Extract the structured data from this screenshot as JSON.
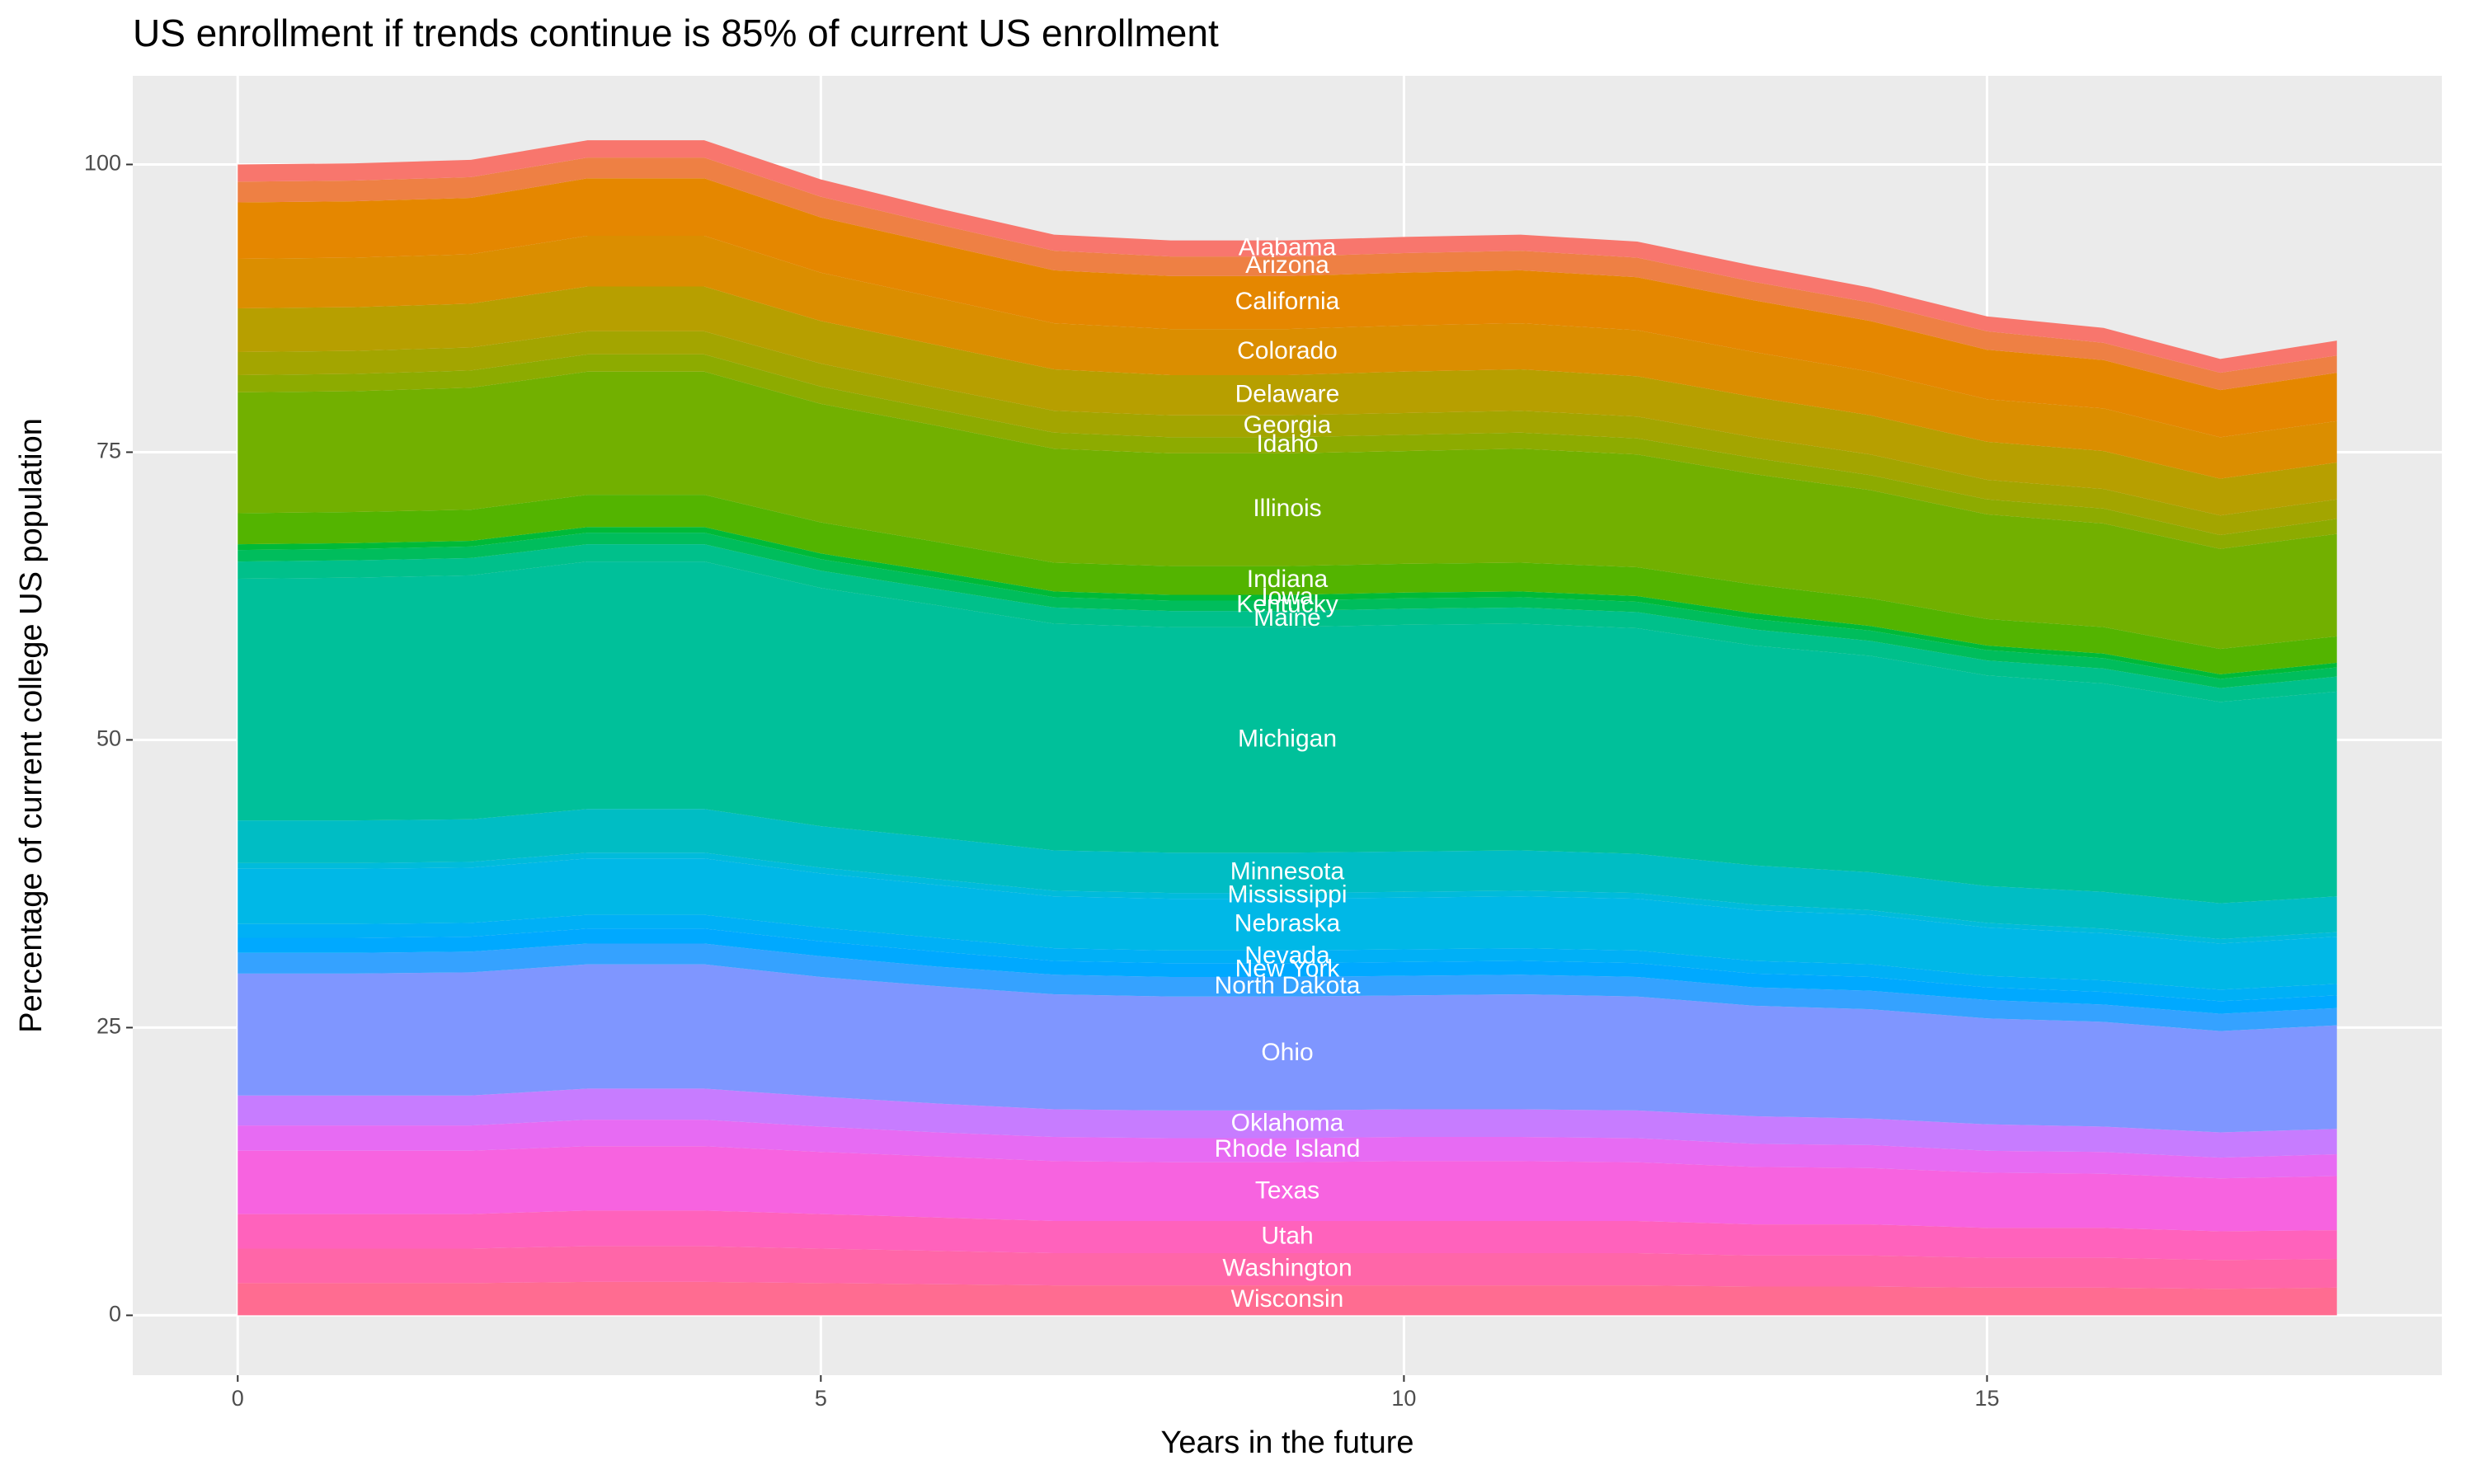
{
  "chart_data": {
    "type": "area",
    "title": "US enrollment if trends continue is 85% of current US enrollment",
    "x_label": "Years in the future",
    "y_label": "Percentage of current college US population",
    "x": [
      0,
      1,
      2,
      3,
      4,
      5,
      6,
      7,
      8,
      9,
      10,
      11,
      12,
      13,
      14,
      15,
      16,
      17,
      18
    ],
    "xlim": [
      -0.9,
      18.9
    ],
    "ylim": [
      -5.2,
      107.7
    ],
    "xticks": [
      0,
      5,
      10,
      15
    ],
    "yticks": [
      0,
      25,
      50,
      75,
      100
    ],
    "grid": true,
    "stacked": true,
    "series": [
      {
        "name": "Wisconsin",
        "color": "#FF6C91",
        "values": [
          2.8,
          2.8,
          2.8,
          2.9,
          2.9,
          2.8,
          2.7,
          2.6,
          2.6,
          2.6,
          2.6,
          2.6,
          2.6,
          2.5,
          2.5,
          2.4,
          2.4,
          2.3,
          2.4
        ]
      },
      {
        "name": "Washington",
        "color": "#FF66A8",
        "values": [
          3.0,
          3.0,
          3.0,
          3.1,
          3.1,
          3.0,
          2.9,
          2.8,
          2.8,
          2.8,
          2.8,
          2.8,
          2.8,
          2.7,
          2.7,
          2.6,
          2.6,
          2.5,
          2.5
        ]
      },
      {
        "name": "Utah",
        "color": "#FF62BC",
        "values": [
          3.0,
          3.0,
          3.0,
          3.1,
          3.1,
          3.0,
          2.9,
          2.8,
          2.8,
          2.8,
          2.8,
          2.8,
          2.8,
          2.7,
          2.7,
          2.6,
          2.6,
          2.5,
          2.5
        ]
      },
      {
        "name": "Texas",
        "color": "#F763E0",
        "values": [
          5.5,
          5.5,
          5.5,
          5.6,
          5.6,
          5.4,
          5.3,
          5.2,
          5.1,
          5.1,
          5.2,
          5.2,
          5.1,
          5.0,
          4.9,
          4.8,
          4.7,
          4.6,
          4.7
        ]
      },
      {
        "name": "Rhode Island",
        "color": "#E76BF3",
        "values": [
          2.2,
          2.2,
          2.2,
          2.3,
          2.3,
          2.2,
          2.1,
          2.1,
          2.1,
          2.1,
          2.1,
          2.1,
          2.1,
          2.0,
          2.0,
          1.9,
          1.9,
          1.8,
          1.9
        ]
      },
      {
        "name": "Oklahoma",
        "color": "#C77CFF",
        "values": [
          2.6,
          2.6,
          2.6,
          2.7,
          2.7,
          2.6,
          2.5,
          2.4,
          2.4,
          2.4,
          2.4,
          2.4,
          2.4,
          2.4,
          2.3,
          2.3,
          2.2,
          2.2,
          2.2
        ]
      },
      {
        "name": "Ohio",
        "color": "#7F96FF",
        "values": [
          10.6,
          10.6,
          10.7,
          10.8,
          10.8,
          10.4,
          10.2,
          10.0,
          9.9,
          9.9,
          9.9,
          10.0,
          9.9,
          9.6,
          9.5,
          9.2,
          9.1,
          8.8,
          9.0
        ]
      },
      {
        "name": "North Dakota",
        "color": "#35A2FF",
        "values": [
          1.8,
          1.8,
          1.8,
          1.8,
          1.8,
          1.8,
          1.7,
          1.7,
          1.7,
          1.7,
          1.7,
          1.7,
          1.7,
          1.6,
          1.6,
          1.6,
          1.5,
          1.5,
          1.5
        ]
      },
      {
        "name": "New York",
        "color": "#00A9FF",
        "values": [
          1.3,
          1.3,
          1.3,
          1.3,
          1.3,
          1.3,
          1.3,
          1.2,
          1.2,
          1.2,
          1.2,
          1.2,
          1.2,
          1.2,
          1.2,
          1.1,
          1.1,
          1.1,
          1.1
        ]
      },
      {
        "name": "Nevada",
        "color": "#00B0F6",
        "values": [
          1.2,
          1.2,
          1.2,
          1.2,
          1.2,
          1.2,
          1.2,
          1.1,
          1.1,
          1.1,
          1.1,
          1.1,
          1.1,
          1.1,
          1.1,
          1.0,
          1.0,
          1.0,
          1.0
        ]
      },
      {
        "name": "Nebraska",
        "color": "#00B8E7",
        "values": [
          4.8,
          4.8,
          4.8,
          4.9,
          4.9,
          4.7,
          4.6,
          4.5,
          4.5,
          4.5,
          4.5,
          4.5,
          4.5,
          4.4,
          4.3,
          4.2,
          4.1,
          4.0,
          4.1
        ]
      },
      {
        "name": "Mississippi",
        "color": "#00BBDB",
        "values": [
          0.5,
          0.5,
          0.5,
          0.5,
          0.5,
          0.5,
          0.5,
          0.5,
          0.5,
          0.5,
          0.5,
          0.5,
          0.5,
          0.5,
          0.4,
          0.4,
          0.4,
          0.4,
          0.4
        ]
      },
      {
        "name": "Minnesota",
        "color": "#00BDC4",
        "values": [
          3.7,
          3.7,
          3.7,
          3.8,
          3.8,
          3.6,
          3.6,
          3.5,
          3.5,
          3.5,
          3.5,
          3.5,
          3.4,
          3.4,
          3.3,
          3.2,
          3.2,
          3.1,
          3.1
        ]
      },
      {
        "name": "Michigan",
        "color": "#00C09A",
        "values": [
          21.0,
          21.1,
          21.2,
          21.5,
          21.5,
          20.7,
          20.2,
          19.7,
          19.6,
          19.6,
          19.7,
          19.7,
          19.6,
          19.1,
          18.8,
          18.3,
          18.1,
          17.5,
          17.8
        ]
      },
      {
        "name": "Maine",
        "color": "#00C08B",
        "values": [
          1.5,
          1.5,
          1.5,
          1.5,
          1.5,
          1.5,
          1.4,
          1.4,
          1.4,
          1.4,
          1.4,
          1.4,
          1.4,
          1.4,
          1.3,
          1.3,
          1.3,
          1.2,
          1.3
        ]
      },
      {
        "name": "Kentucky",
        "color": "#00BD5C",
        "values": [
          1.0,
          1.0,
          1.0,
          1.0,
          1.0,
          1.0,
          1.0,
          0.9,
          0.9,
          0.9,
          0.9,
          0.9,
          0.9,
          0.9,
          0.9,
          0.9,
          0.9,
          0.8,
          0.8
        ]
      },
      {
        "name": "Iowa",
        "color": "#00BA38",
        "values": [
          0.5,
          0.5,
          0.5,
          0.5,
          0.5,
          0.5,
          0.5,
          0.5,
          0.5,
          0.5,
          0.5,
          0.5,
          0.5,
          0.5,
          0.4,
          0.4,
          0.4,
          0.4,
          0.4
        ]
      },
      {
        "name": "Indiana",
        "color": "#53B400",
        "values": [
          2.7,
          2.7,
          2.7,
          2.8,
          2.8,
          2.7,
          2.6,
          2.5,
          2.5,
          2.5,
          2.5,
          2.5,
          2.5,
          2.5,
          2.4,
          2.3,
          2.3,
          2.2,
          2.3
        ]
      },
      {
        "name": "Illinois",
        "color": "#72B000",
        "values": [
          10.5,
          10.5,
          10.6,
          10.7,
          10.7,
          10.3,
          10.1,
          9.9,
          9.8,
          9.8,
          9.8,
          9.9,
          9.8,
          9.6,
          9.4,
          9.1,
          9.0,
          8.7,
          8.9
        ]
      },
      {
        "name": "Idaho",
        "color": "#8DAB00",
        "values": [
          1.5,
          1.5,
          1.5,
          1.5,
          1.5,
          1.5,
          1.4,
          1.4,
          1.4,
          1.4,
          1.4,
          1.4,
          1.4,
          1.4,
          1.3,
          1.3,
          1.3,
          1.2,
          1.3
        ]
      },
      {
        "name": "Georgia",
        "color": "#A3A500",
        "values": [
          2.0,
          2.0,
          2.0,
          2.0,
          2.0,
          2.0,
          1.9,
          1.9,
          1.9,
          1.9,
          1.9,
          1.9,
          1.9,
          1.8,
          1.8,
          1.7,
          1.7,
          1.7,
          1.7
        ]
      },
      {
        "name": "Delaware",
        "color": "#B79F00",
        "values": [
          3.8,
          3.8,
          3.8,
          3.9,
          3.9,
          3.7,
          3.7,
          3.6,
          3.5,
          3.5,
          3.6,
          3.6,
          3.5,
          3.5,
          3.4,
          3.3,
          3.3,
          3.2,
          3.2
        ]
      },
      {
        "name": "Colorado",
        "color": "#DB8E00",
        "values": [
          4.3,
          4.3,
          4.3,
          4.4,
          4.4,
          4.2,
          4.1,
          4.0,
          4.0,
          4.0,
          4.0,
          4.0,
          4.0,
          3.9,
          3.8,
          3.7,
          3.7,
          3.6,
          3.6
        ]
      },
      {
        "name": "California",
        "color": "#E58700",
        "values": [
          4.9,
          4.9,
          4.9,
          5.0,
          5.0,
          4.8,
          4.7,
          4.6,
          4.6,
          4.6,
          4.6,
          4.6,
          4.6,
          4.5,
          4.4,
          4.3,
          4.2,
          4.1,
          4.2
        ]
      },
      {
        "name": "Arizona",
        "color": "#EE8044",
        "values": [
          1.8,
          1.8,
          1.8,
          1.8,
          1.8,
          1.8,
          1.7,
          1.7,
          1.7,
          1.7,
          1.7,
          1.7,
          1.7,
          1.6,
          1.6,
          1.6,
          1.5,
          1.5,
          1.5
        ]
      },
      {
        "name": "Alabama",
        "color": "#F8766D",
        "values": [
          1.5,
          1.5,
          1.5,
          1.5,
          1.5,
          1.5,
          1.4,
          1.4,
          1.4,
          1.4,
          1.4,
          1.4,
          1.4,
          1.4,
          1.3,
          1.3,
          1.3,
          1.2,
          1.3
        ]
      }
    ]
  }
}
